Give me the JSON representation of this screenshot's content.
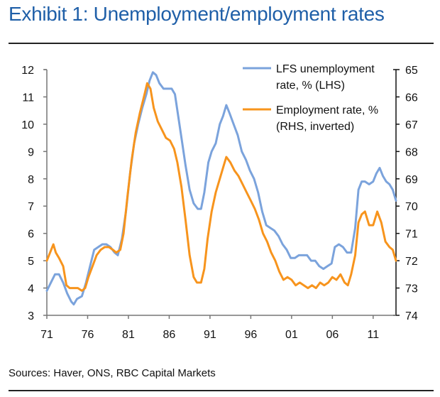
{
  "page": {
    "title": "Exhibit 1: Unemployment/employment rates",
    "source": "Sources: Haver, ONS, RBC Capital Markets"
  },
  "chart_data": {
    "type": "line",
    "title": "Exhibit 1: Unemployment/employment rates",
    "xlabel": "",
    "ylabel_left": "",
    "ylabel_right": "",
    "x_tick_labels": [
      "71",
      "76",
      "81",
      "86",
      "91",
      "96",
      "01",
      "06",
      "11"
    ],
    "x_ticks": [
      1971,
      1976,
      1981,
      1986,
      1991,
      1996,
      2001,
      2006,
      2011
    ],
    "xlim": [
      1971,
      2013.8
    ],
    "y_left_ticks": [
      3,
      4,
      5,
      6,
      7,
      8,
      9,
      10,
      11,
      12
    ],
    "y_left_tick_labels": [
      "3",
      "4",
      "5",
      "6",
      "7",
      "8",
      "9",
      "10",
      "11",
      "12"
    ],
    "ylim_left": [
      3,
      12
    ],
    "y_right_ticks": [
      65,
      66,
      67,
      68,
      69,
      70,
      71,
      72,
      73,
      74
    ],
    "y_right_tick_labels": [
      "65",
      "66",
      "67",
      "68",
      "69",
      "70",
      "71",
      "72",
      "73",
      "74"
    ],
    "ylim_right": [
      65,
      74
    ],
    "right_axis_inverted": true,
    "grid": false,
    "legend_position": "top-right",
    "series": [
      {
        "name": "LFS unemployment rate, % (LHS)",
        "legend_lines": [
          "LFS unemployment",
          "rate, % (LHS)"
        ],
        "axis": "left",
        "color": "#7ba3dc",
        "points": [
          [
            1971.0,
            3.9
          ],
          [
            1971.5,
            4.2
          ],
          [
            1972.0,
            4.5
          ],
          [
            1972.5,
            4.5
          ],
          [
            1973.0,
            4.2
          ],
          [
            1973.5,
            3.8
          ],
          [
            1974.0,
            3.5
          ],
          [
            1974.3,
            3.4
          ],
          [
            1974.7,
            3.6
          ],
          [
            1975.3,
            3.7
          ],
          [
            1975.8,
            4.2
          ],
          [
            1976.3,
            4.8
          ],
          [
            1976.8,
            5.4
          ],
          [
            1977.3,
            5.5
          ],
          [
            1977.8,
            5.6
          ],
          [
            1978.3,
            5.6
          ],
          [
            1978.8,
            5.5
          ],
          [
            1979.3,
            5.3
          ],
          [
            1979.7,
            5.2
          ],
          [
            1980.2,
            5.8
          ],
          [
            1980.7,
            6.8
          ],
          [
            1981.2,
            8.2
          ],
          [
            1981.7,
            9.3
          ],
          [
            1982.2,
            10.0
          ],
          [
            1982.7,
            10.6
          ],
          [
            1983.2,
            11.1
          ],
          [
            1983.6,
            11.6
          ],
          [
            1984.0,
            11.9
          ],
          [
            1984.4,
            11.8
          ],
          [
            1984.8,
            11.5
          ],
          [
            1985.3,
            11.3
          ],
          [
            1985.8,
            11.3
          ],
          [
            1986.3,
            11.3
          ],
          [
            1986.7,
            11.1
          ],
          [
            1987.1,
            10.3
          ],
          [
            1987.5,
            9.5
          ],
          [
            1988.0,
            8.5
          ],
          [
            1988.5,
            7.6
          ],
          [
            1989.0,
            7.1
          ],
          [
            1989.5,
            6.9
          ],
          [
            1989.9,
            6.9
          ],
          [
            1990.3,
            7.5
          ],
          [
            1990.8,
            8.6
          ],
          [
            1991.2,
            9.0
          ],
          [
            1991.7,
            9.3
          ],
          [
            1992.2,
            10.0
          ],
          [
            1992.6,
            10.3
          ],
          [
            1993.0,
            10.7
          ],
          [
            1993.4,
            10.4
          ],
          [
            1993.9,
            10.0
          ],
          [
            1994.4,
            9.6
          ],
          [
            1994.9,
            9.0
          ],
          [
            1995.4,
            8.7
          ],
          [
            1995.9,
            8.3
          ],
          [
            1996.4,
            8.0
          ],
          [
            1996.9,
            7.5
          ],
          [
            1997.4,
            6.8
          ],
          [
            1997.9,
            6.3
          ],
          [
            1998.4,
            6.2
          ],
          [
            1998.9,
            6.1
          ],
          [
            1999.4,
            5.9
          ],
          [
            1999.9,
            5.6
          ],
          [
            2000.4,
            5.4
          ],
          [
            2000.9,
            5.1
          ],
          [
            2001.4,
            5.1
          ],
          [
            2001.9,
            5.2
          ],
          [
            2002.4,
            5.2
          ],
          [
            2002.9,
            5.2
          ],
          [
            2003.4,
            5.0
          ],
          [
            2003.9,
            5.0
          ],
          [
            2004.4,
            4.8
          ],
          [
            2004.9,
            4.7
          ],
          [
            2005.4,
            4.8
          ],
          [
            2005.9,
            4.9
          ],
          [
            2006.3,
            5.5
          ],
          [
            2006.8,
            5.6
          ],
          [
            2007.3,
            5.5
          ],
          [
            2007.8,
            5.3
          ],
          [
            2008.3,
            5.3
          ],
          [
            2008.8,
            6.2
          ],
          [
            2009.2,
            7.6
          ],
          [
            2009.6,
            7.9
          ],
          [
            2010.0,
            7.9
          ],
          [
            2010.5,
            7.8
          ],
          [
            2011.0,
            7.9
          ],
          [
            2011.4,
            8.2
          ],
          [
            2011.8,
            8.4
          ],
          [
            2012.2,
            8.1
          ],
          [
            2012.6,
            7.9
          ],
          [
            2013.0,
            7.8
          ],
          [
            2013.4,
            7.6
          ],
          [
            2013.8,
            7.2
          ]
        ]
      },
      {
        "name": "Employment rate, % (RHS, inverted)",
        "legend_lines": [
          "Employment rate, %",
          "(RHS, inverted)"
        ],
        "axis": "right",
        "color": "#f7941d",
        "points": [
          [
            1971.0,
            72.0
          ],
          [
            1971.4,
            71.7
          ],
          [
            1971.8,
            71.4
          ],
          [
            1972.1,
            71.7
          ],
          [
            1972.5,
            71.9
          ],
          [
            1973.0,
            72.2
          ],
          [
            1973.4,
            72.9
          ],
          [
            1973.8,
            73.0
          ],
          [
            1974.3,
            73.0
          ],
          [
            1974.8,
            73.0
          ],
          [
            1975.3,
            73.1
          ],
          [
            1975.7,
            73.0
          ],
          [
            1976.1,
            72.6
          ],
          [
            1976.6,
            72.2
          ],
          [
            1977.1,
            71.8
          ],
          [
            1977.6,
            71.6
          ],
          [
            1978.1,
            71.5
          ],
          [
            1978.6,
            71.5
          ],
          [
            1979.1,
            71.6
          ],
          [
            1979.5,
            71.7
          ],
          [
            1980.0,
            71.6
          ],
          [
            1980.4,
            71.0
          ],
          [
            1980.9,
            69.6
          ],
          [
            1981.4,
            68.3
          ],
          [
            1981.9,
            67.3
          ],
          [
            1982.4,
            66.6
          ],
          [
            1982.9,
            66.0
          ],
          [
            1983.3,
            65.5
          ],
          [
            1983.7,
            65.7
          ],
          [
            1984.1,
            66.4
          ],
          [
            1984.6,
            66.9
          ],
          [
            1985.1,
            67.2
          ],
          [
            1985.6,
            67.5
          ],
          [
            1986.1,
            67.6
          ],
          [
            1986.6,
            67.9
          ],
          [
            1987.0,
            68.4
          ],
          [
            1987.5,
            69.3
          ],
          [
            1988.0,
            70.5
          ],
          [
            1988.5,
            71.8
          ],
          [
            1989.0,
            72.6
          ],
          [
            1989.4,
            72.8
          ],
          [
            1989.9,
            72.8
          ],
          [
            1990.3,
            72.3
          ],
          [
            1990.7,
            71.2
          ],
          [
            1991.2,
            70.2
          ],
          [
            1991.7,
            69.5
          ],
          [
            1992.2,
            69.0
          ],
          [
            1992.7,
            68.5
          ],
          [
            1993.0,
            68.2
          ],
          [
            1993.5,
            68.4
          ],
          [
            1994.0,
            68.7
          ],
          [
            1994.5,
            68.9
          ],
          [
            1995.0,
            69.2
          ],
          [
            1995.5,
            69.5
          ],
          [
            1996.0,
            69.8
          ],
          [
            1996.5,
            70.1
          ],
          [
            1997.0,
            70.5
          ],
          [
            1997.5,
            71.0
          ],
          [
            1998.0,
            71.3
          ],
          [
            1998.5,
            71.7
          ],
          [
            1999.0,
            72.0
          ],
          [
            1999.5,
            72.4
          ],
          [
            2000.0,
            72.7
          ],
          [
            2000.5,
            72.6
          ],
          [
            2001.0,
            72.7
          ],
          [
            2001.5,
            72.9
          ],
          [
            2002.0,
            72.8
          ],
          [
            2002.5,
            72.9
          ],
          [
            2003.0,
            73.0
          ],
          [
            2003.5,
            72.9
          ],
          [
            2004.0,
            73.0
          ],
          [
            2004.5,
            72.8
          ],
          [
            2005.0,
            72.9
          ],
          [
            2005.5,
            72.8
          ],
          [
            2006.0,
            72.6
          ],
          [
            2006.5,
            72.7
          ],
          [
            2007.0,
            72.5
          ],
          [
            2007.5,
            72.8
          ],
          [
            2007.9,
            72.9
          ],
          [
            2008.3,
            72.5
          ],
          [
            2008.8,
            71.8
          ],
          [
            2009.2,
            70.6
          ],
          [
            2009.6,
            70.3
          ],
          [
            2010.0,
            70.2
          ],
          [
            2010.5,
            70.7
          ],
          [
            2011.0,
            70.7
          ],
          [
            2011.5,
            70.2
          ],
          [
            2012.0,
            70.6
          ],
          [
            2012.5,
            71.3
          ],
          [
            2013.0,
            71.5
          ],
          [
            2013.4,
            71.6
          ],
          [
            2013.8,
            72.0
          ]
        ]
      }
    ]
  }
}
